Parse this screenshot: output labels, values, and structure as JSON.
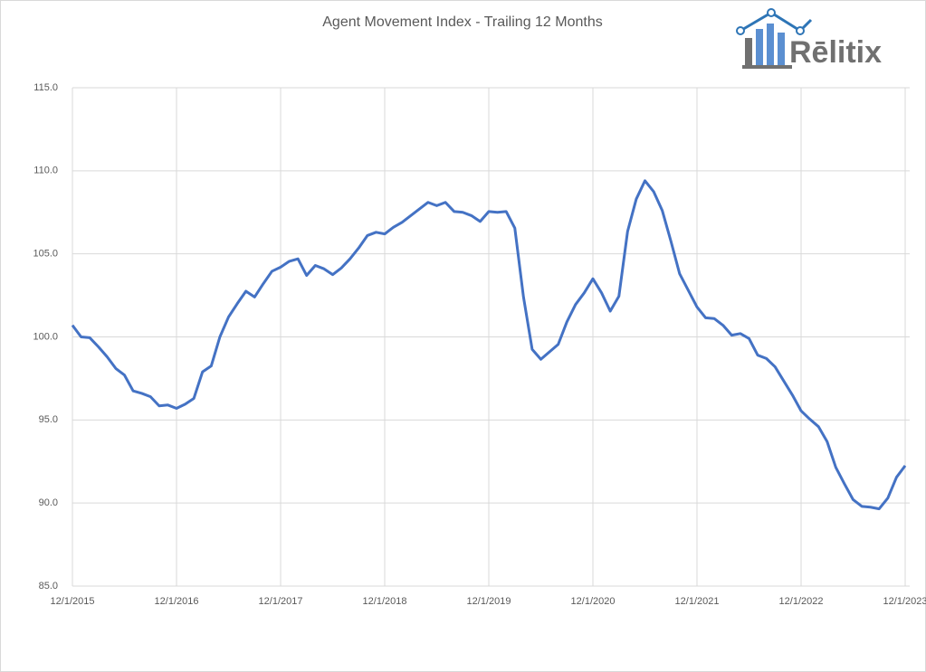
{
  "chart_data": {
    "type": "line",
    "title": "Agent Movement Index - Trailing 12 Months",
    "logo": "Rēlitix",
    "x": [
      "2015-12-01",
      "2016-01-01",
      "2016-02-01",
      "2016-03-01",
      "2016-04-01",
      "2016-05-01",
      "2016-06-01",
      "2016-07-01",
      "2016-08-01",
      "2016-09-01",
      "2016-10-01",
      "2016-11-01",
      "2016-12-01",
      "2017-01-01",
      "2017-02-01",
      "2017-03-01",
      "2017-04-01",
      "2017-05-01",
      "2017-06-01",
      "2017-07-01",
      "2017-08-01",
      "2017-09-01",
      "2017-10-01",
      "2017-11-01",
      "2017-12-01",
      "2018-01-01",
      "2018-02-01",
      "2018-03-01",
      "2018-04-01",
      "2018-05-01",
      "2018-06-01",
      "2018-07-01",
      "2018-08-01",
      "2018-09-01",
      "2018-10-01",
      "2018-11-01",
      "2018-12-01",
      "2019-01-01",
      "2019-02-01",
      "2019-03-01",
      "2019-04-01",
      "2019-05-01",
      "2019-06-01",
      "2019-07-01",
      "2019-08-01",
      "2019-09-01",
      "2019-10-01",
      "2019-11-01",
      "2019-12-01",
      "2020-01-01",
      "2020-02-01",
      "2020-03-01",
      "2020-04-01",
      "2020-05-01",
      "2020-06-01",
      "2020-07-01",
      "2020-08-01",
      "2020-09-01",
      "2020-10-01",
      "2020-11-01",
      "2020-12-01",
      "2021-01-01",
      "2021-02-01",
      "2021-03-01",
      "2021-04-01",
      "2021-05-01",
      "2021-06-01",
      "2021-07-01",
      "2021-08-01",
      "2021-09-01",
      "2021-10-01",
      "2021-11-01",
      "2021-12-01",
      "2022-01-01",
      "2022-02-01",
      "2022-03-01",
      "2022-04-01",
      "2022-05-01",
      "2022-06-01",
      "2022-07-01",
      "2022-08-01",
      "2022-09-01",
      "2022-10-01",
      "2022-11-01",
      "2022-12-01",
      "2023-01-01",
      "2023-02-01",
      "2023-03-01",
      "2023-04-01",
      "2023-05-01",
      "2023-06-01",
      "2023-07-01",
      "2023-08-01",
      "2023-09-01",
      "2023-10-01",
      "2023-11-01",
      "2023-12-01"
    ],
    "series": [
      {
        "color": "#4472c4",
        "values": [
          100.7,
          100.0,
          99.95,
          99.4,
          98.8,
          98.1,
          97.7,
          96.75,
          96.6,
          96.4,
          95.85,
          95.9,
          95.7,
          95.95,
          96.3,
          97.9,
          98.25,
          100.0,
          101.2,
          102.0,
          102.75,
          102.4,
          103.2,
          103.95,
          104.2,
          104.55,
          104.7,
          103.7,
          104.3,
          104.1,
          103.75,
          104.15,
          104.7,
          105.35,
          106.1,
          106.3,
          106.2,
          106.6,
          106.9,
          107.3,
          107.7,
          108.1,
          107.9,
          108.1,
          107.55,
          107.5,
          107.3,
          106.95,
          107.55,
          107.5,
          107.55,
          106.55,
          102.4,
          99.25,
          98.65,
          99.1,
          99.55,
          100.9,
          101.95,
          102.65,
          103.5,
          102.65,
          101.55,
          102.45,
          106.35,
          108.3,
          109.4,
          108.75,
          107.6,
          105.75,
          103.8,
          102.8,
          101.8,
          101.15,
          101.1,
          100.7,
          100.1,
          100.2,
          99.9,
          98.9,
          98.7,
          98.2,
          97.35,
          96.5,
          95.55,
          95.05,
          94.6,
          93.7,
          92.15,
          91.15,
          90.2,
          89.8,
          89.75,
          89.65,
          90.3,
          91.55,
          92.25
        ]
      }
    ],
    "xlim": [
      "2015-12-01",
      "2023-12-01"
    ],
    "xticks": [
      {
        "value": "2015-12-01",
        "label": "12/1/2015"
      },
      {
        "value": "2016-12-01",
        "label": "12/1/2016"
      },
      {
        "value": "2017-12-01",
        "label": "12/1/2017"
      },
      {
        "value": "2018-12-01",
        "label": "12/1/2018"
      },
      {
        "value": "2019-12-01",
        "label": "12/1/2019"
      },
      {
        "value": "2020-12-01",
        "label": "12/1/2020"
      },
      {
        "value": "2021-12-01",
        "label": "12/1/2021"
      },
      {
        "value": "2022-12-01",
        "label": "12/1/2022"
      },
      {
        "value": "2023-12-01",
        "label": "12/1/2023"
      }
    ],
    "ylim": [
      85,
      115
    ],
    "yticks": [
      {
        "value": 85,
        "label": "85.0"
      },
      {
        "value": 90,
        "label": "90.0"
      },
      {
        "value": 95,
        "label": "95.0"
      },
      {
        "value": 100,
        "label": "100.0"
      },
      {
        "value": 105,
        "label": "105.0"
      },
      {
        "value": 110,
        "label": "110.0"
      },
      {
        "value": 115,
        "label": "115.0"
      }
    ],
    "grid": true
  }
}
